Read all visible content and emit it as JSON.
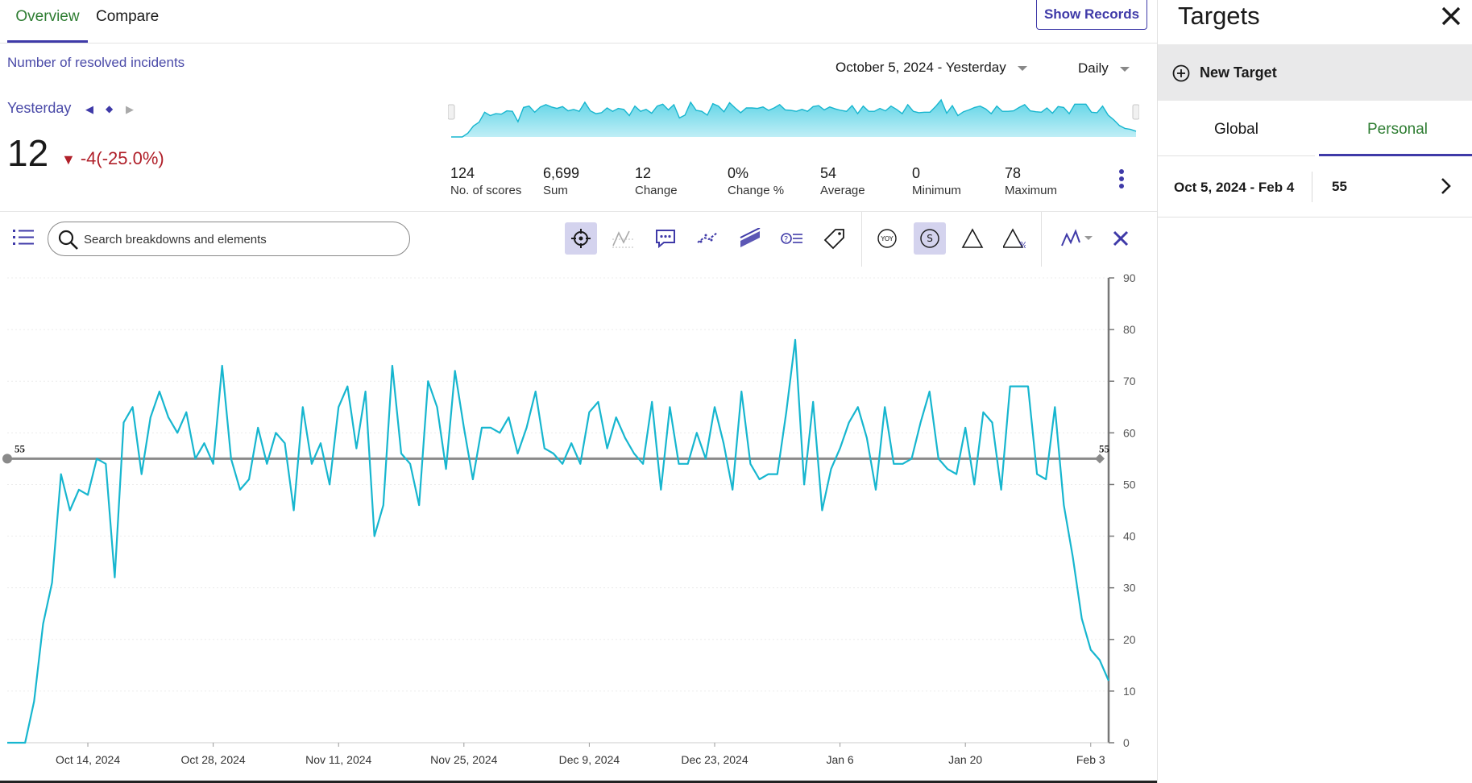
{
  "tabs": [
    {
      "label": "Overview"
    },
    {
      "label": "Compare"
    }
  ],
  "show_records_label": "Show Records",
  "metric": {
    "title": "Number of resolved incidents",
    "date_range": "October 5, 2024 - Yesterday",
    "granularity": "Daily",
    "period": "Yesterday",
    "value": "12",
    "delta": "-4",
    "delta_pct": "(-25.0%)"
  },
  "stats": [
    {
      "value": "124",
      "label": "No. of scores"
    },
    {
      "value": "6,699",
      "label": "Sum"
    },
    {
      "value": "12",
      "label": "Change"
    },
    {
      "value": "0%",
      "label": "Change %"
    },
    {
      "value": "54",
      "label": "Average"
    },
    {
      "value": "0",
      "label": "Minimum"
    },
    {
      "value": "78",
      "label": "Maximum"
    }
  ],
  "search": {
    "placeholder": "Search breakdowns and elements"
  },
  "toolbar_icons": [
    "crosshair-icon",
    "trendline-icon",
    "annotations-icon",
    "forecast-icon",
    "thresholds-icon",
    "anomaly-icon",
    "tag-icon",
    "yoy-icon",
    "currency-icon",
    "delta-icon",
    "delta-percent-icon",
    "chart-type-icon",
    "close-icon"
  ],
  "colors": {
    "accent": "#3f3aa8",
    "active_tab_text": "#2e7d32",
    "line": "#17b6cf",
    "area": "#5fd4e6",
    "target_line": "#8a8a8a",
    "negative": "#b0202a"
  },
  "chart_data": {
    "type": "line",
    "x_ticks": [
      "Oct 14, 2024",
      "Oct 28, 2024",
      "Nov 11, 2024",
      "Nov 25, 2024",
      "Dec 9, 2024",
      "Dec 23, 2024",
      "Jan 6",
      "Jan 20",
      "Feb 3"
    ],
    "y_ticks": [
      0,
      10,
      20,
      30,
      40,
      50,
      60,
      70,
      80,
      90
    ],
    "ylim": [
      0,
      90
    ],
    "y_axis_position": "right",
    "target": {
      "value": 55,
      "label": "55"
    },
    "series": [
      {
        "values": [
          0,
          0,
          0,
          8,
          23,
          31,
          52,
          45,
          49,
          48,
          55,
          54,
          32,
          62,
          65,
          52,
          63,
          68,
          63,
          60,
          64,
          55,
          58,
          54,
          73,
          55,
          49,
          51,
          61,
          54,
          60,
          58,
          45,
          65,
          54,
          58,
          50,
          65,
          69,
          57,
          68,
          40,
          46,
          73,
          56,
          54,
          46,
          70,
          65,
          53,
          72,
          61,
          51,
          61,
          61,
          60,
          63,
          56,
          61,
          68,
          57,
          56,
          54,
          58,
          54,
          64,
          66,
          57,
          63,
          59,
          56,
          54,
          66,
          49,
          65,
          54,
          54,
          60,
          55,
          65,
          58,
          49,
          68,
          54,
          51,
          52,
          52,
          64,
          78,
          50,
          66,
          45,
          53,
          57,
          62,
          65,
          59,
          49,
          65,
          54,
          54,
          55,
          62,
          68,
          55,
          53,
          52,
          61,
          50,
          64,
          62,
          49,
          69,
          69,
          69,
          52,
          51,
          65,
          46,
          36,
          24,
          18,
          16,
          12
        ]
      }
    ]
  },
  "sparkline": {
    "values": [
      0,
      0,
      0,
      8,
      23,
      31,
      52,
      45,
      49,
      48,
      55,
      54,
      32,
      62,
      65,
      52,
      63,
      68,
      63,
      60,
      64,
      55,
      58,
      54,
      73,
      55,
      49,
      51,
      61,
      54,
      60,
      58,
      45,
      65,
      54,
      58,
      50,
      65,
      69,
      57,
      68,
      40,
      46,
      73,
      56,
      54,
      46,
      70,
      65,
      53,
      72,
      61,
      51,
      61,
      61,
      60,
      63,
      56,
      61,
      68,
      57,
      56,
      54,
      58,
      54,
      64,
      66,
      57,
      63,
      59,
      56,
      54,
      66,
      49,
      65,
      54,
      54,
      60,
      55,
      65,
      58,
      49,
      68,
      54,
      51,
      52,
      52,
      64,
      78,
      50,
      66,
      45,
      53,
      57,
      62,
      65,
      59,
      49,
      65,
      54,
      54,
      55,
      62,
      68,
      55,
      53,
      52,
      61,
      50,
      64,
      62,
      49,
      69,
      69,
      69,
      52,
      51,
      65,
      46,
      36,
      24,
      18,
      16,
      12
    ]
  },
  "side_panel": {
    "title": "Targets",
    "new_target_label": "New Target",
    "tabs": [
      {
        "label": "Global"
      },
      {
        "label": "Personal"
      }
    ],
    "targets": [
      {
        "range": "Oct 5, 2024 - Feb 4",
        "value": "55"
      }
    ]
  }
}
